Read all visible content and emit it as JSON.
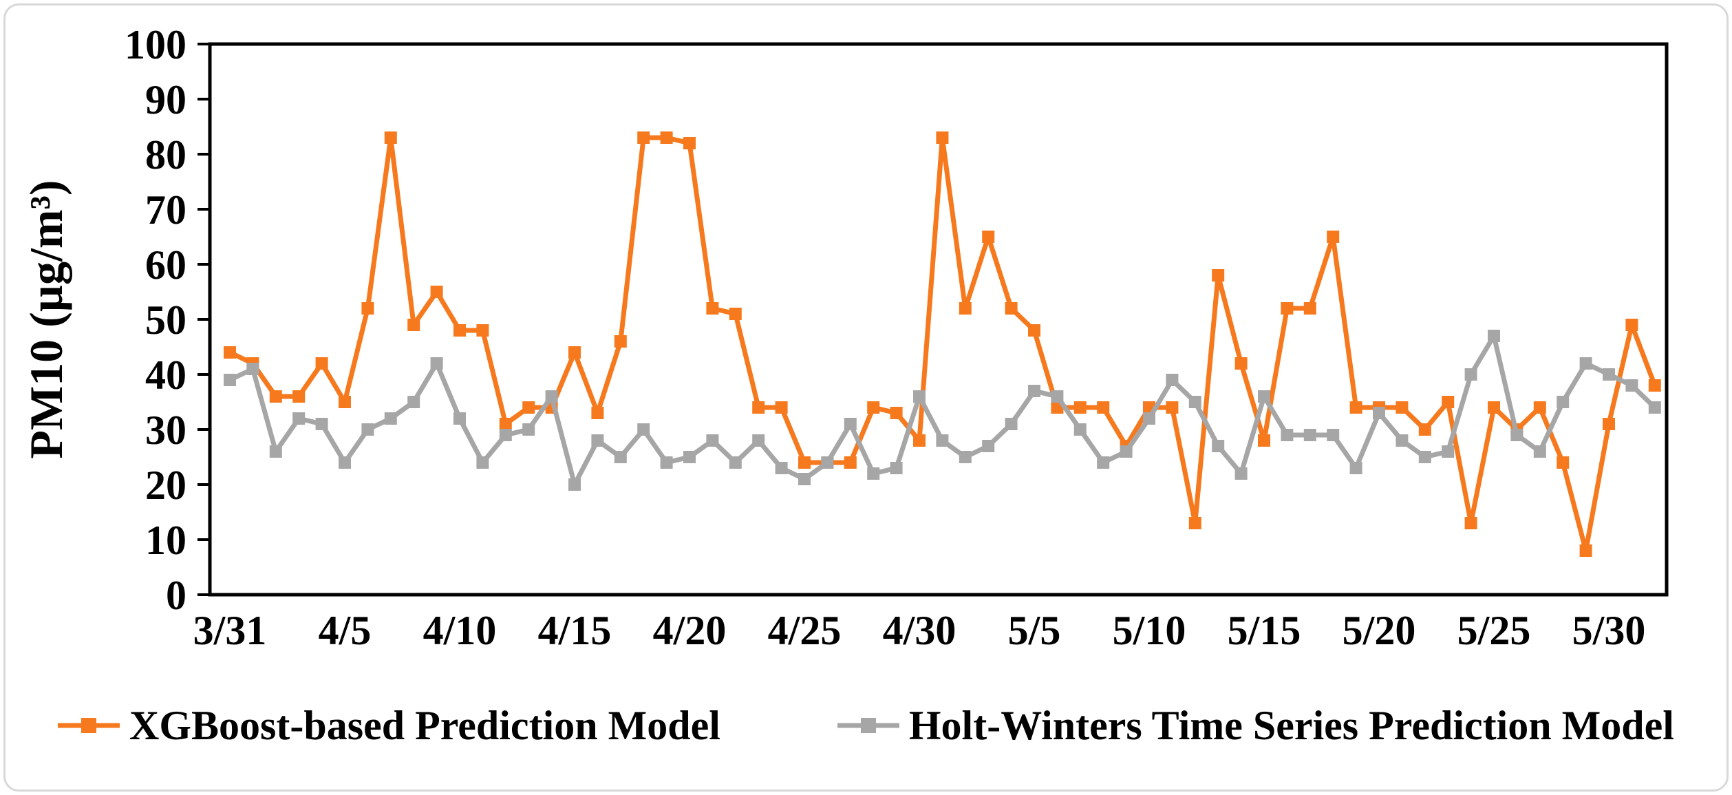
{
  "figure": {
    "background": "#FFFFFF",
    "border_color": "#D8D8D8",
    "axis_color": "#000000"
  },
  "chart_data": {
    "type": "line",
    "title": "",
    "xlabel": "",
    "ylabel": "PM10 (µg/m³)",
    "ylim": [
      0,
      100
    ],
    "y_ticks": [
      0,
      10,
      20,
      30,
      40,
      50,
      60,
      70,
      80,
      90,
      100
    ],
    "x_tick_labels": [
      "3/31",
      "4/5",
      "4/10",
      "4/15",
      "4/20",
      "4/25",
      "4/30",
      "5/5",
      "5/10",
      "5/15",
      "5/20",
      "5/25",
      "5/30"
    ],
    "x_tick_every": 5,
    "grid": false,
    "legend_position": "bottom",
    "marker": "square",
    "categories": [
      "3/31",
      "4/1",
      "4/2",
      "4/3",
      "4/4",
      "4/5",
      "4/6",
      "4/7",
      "4/8",
      "4/9",
      "4/10",
      "4/11",
      "4/12",
      "4/13",
      "4/14",
      "4/15",
      "4/16",
      "4/17",
      "4/18",
      "4/19",
      "4/20",
      "4/21",
      "4/22",
      "4/23",
      "4/24",
      "4/25",
      "4/26",
      "4/27",
      "4/28",
      "4/29",
      "4/30",
      "5/1",
      "5/2",
      "5/3",
      "5/4",
      "5/5",
      "5/6",
      "5/7",
      "5/8",
      "5/9",
      "5/10",
      "5/11",
      "5/12",
      "5/13",
      "5/14",
      "5/15",
      "5/16",
      "5/17",
      "5/18",
      "5/19",
      "5/20",
      "5/21",
      "5/22",
      "5/23",
      "5/24",
      "5/25",
      "5/26",
      "5/27",
      "5/28",
      "5/29",
      "5/30",
      "5/31",
      "6/1"
    ],
    "series": [
      {
        "name": "XGBoost-based Prediction Model",
        "color": "#F6791E",
        "values": [
          44,
          42,
          36,
          36,
          42,
          35,
          52,
          83,
          49,
          55,
          48,
          48,
          31,
          34,
          34,
          44,
          33,
          46,
          83,
          83,
          82,
          52,
          51,
          34,
          34,
          24,
          24,
          24,
          34,
          33,
          28,
          83,
          52,
          65,
          52,
          48,
          34,
          34,
          34,
          27,
          34,
          34,
          13,
          58,
          42,
          28,
          52,
          52,
          65,
          34,
          34,
          34,
          30,
          35,
          13,
          34,
          30,
          34,
          24,
          8,
          31,
          49,
          38
        ]
      },
      {
        "name": "Holt-Winters Time Series Prediction Model",
        "color": "#A6A6A6",
        "values": [
          39,
          41,
          26,
          32,
          31,
          24,
          30,
          32,
          35,
          42,
          32,
          24,
          29,
          30,
          36,
          20,
          28,
          25,
          30,
          24,
          25,
          28,
          24,
          28,
          23,
          21,
          24,
          31,
          22,
          23,
          36,
          28,
          25,
          27,
          31,
          37,
          36,
          30,
          24,
          26,
          32,
          39,
          35,
          27,
          22,
          36,
          29,
          29,
          29,
          23,
          33,
          28,
          25,
          26,
          40,
          47,
          29,
          26,
          35,
          42,
          40,
          38,
          34
        ]
      }
    ]
  }
}
